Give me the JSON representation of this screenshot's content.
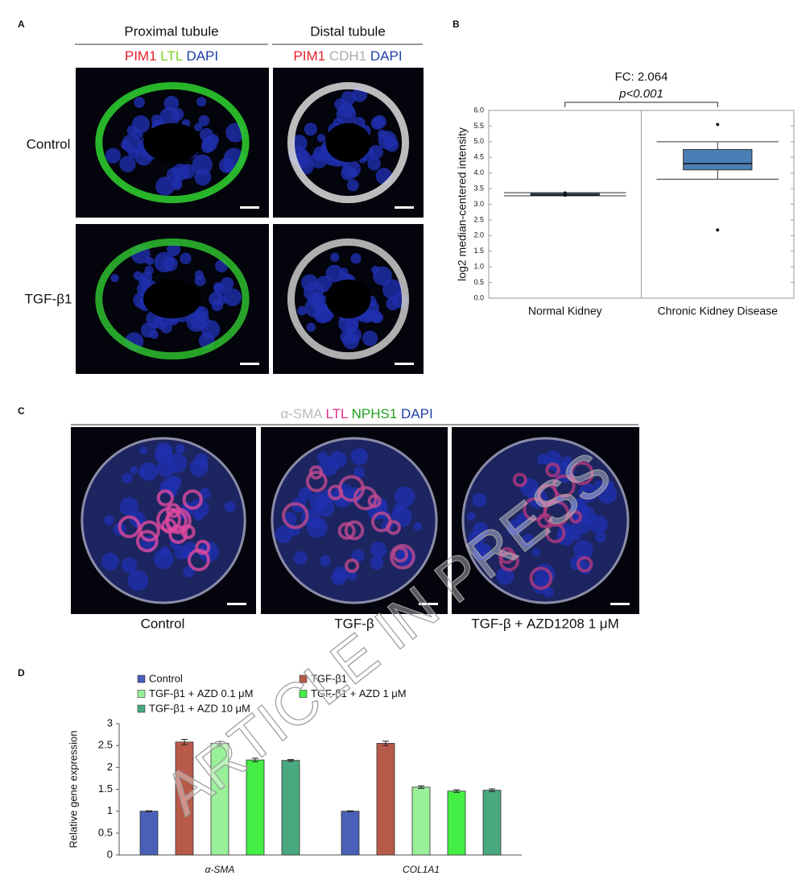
{
  "panel_a": {
    "label": "A",
    "headers": [
      "Proximal tubule",
      "Distal tubule"
    ],
    "stains": [
      [
        {
          "text": "PIM1",
          "color": "#e8202a"
        },
        {
          "text": "LTL",
          "color": "#7cd420"
        },
        {
          "text": "DAPI",
          "color": "#1f3fa8"
        }
      ],
      [
        {
          "text": "PIM1",
          "color": "#e8202a"
        },
        {
          "text": "CDH1",
          "color": "#aaaaaa"
        },
        {
          "text": "DAPI",
          "color": "#1f3fa8"
        }
      ]
    ],
    "rows": [
      "Control",
      "TGF-β1"
    ]
  },
  "panel_c": {
    "label": "C",
    "stains": [
      {
        "text": "α-SMA",
        "color": "#bbbbbb"
      },
      {
        "text": "LTL",
        "color": "#e0308a"
      },
      {
        "text": "NPHS1",
        "color": "#20a020"
      },
      {
        "text": "DAPI",
        "color": "#1f3fa8"
      }
    ],
    "captions": [
      "Control",
      "TGF-β",
      "TGF-β + AZD1208 1 μM"
    ]
  },
  "watermark": "ARTICLE IN PRESS",
  "chart_data": [
    {
      "type": "box",
      "label": "B",
      "annotations": [
        "FC: 2.064",
        "p<0.001"
      ],
      "y_label": "log2 median-centered intensity",
      "color": "#4a7fb5",
      "categories": [
        "Normal Kidney",
        "Chronic Kidney Disease"
      ],
      "boxes": [
        {
          "min": 3.27,
          "q1": 3.28,
          "median": 3.3,
          "q3": 3.35,
          "max": 3.37,
          "outliers": [
            3.29,
            3.36
          ]
        },
        {
          "min": 3.8,
          "q1": 4.1,
          "median": 4.3,
          "q3": 4.75,
          "max": 5.0,
          "outliers": [
            5.55,
            2.18
          ]
        }
      ],
      "ylim": [
        0,
        6
      ],
      "yticks": [
        {
          "value": 0,
          "label": "0.0"
        },
        {
          "value": 0.5,
          "label": "0.5"
        },
        {
          "value": 1,
          "label": "1.0"
        },
        {
          "value": 1.5,
          "label": "1.5"
        },
        {
          "value": 2,
          "label": "2.0"
        },
        {
          "value": 2.5,
          "label": "2.5"
        },
        {
          "value": 3,
          "label": "3.0"
        },
        {
          "value": 3.5,
          "label": "3.5"
        },
        {
          "value": 4,
          "label": "4.0"
        },
        {
          "value": 4.5,
          "label": "4.5"
        },
        {
          "value": 5,
          "label": "5.0"
        },
        {
          "value": 5.5,
          "label": "5.5"
        },
        {
          "value": 6,
          "label": "6.0"
        }
      ]
    },
    {
      "type": "bar",
      "label": "D",
      "y_label": "Relative gene expression",
      "categories": [
        "α-SMA",
        "COL1A1"
      ],
      "series": [
        {
          "name": "Control",
          "color": "#4a5fb8",
          "values": [
            1.0,
            1.0
          ],
          "errors": [
            0.01,
            0.01
          ]
        },
        {
          "name": "TGF-β1",
          "color": "#b85a4a",
          "values": [
            2.58,
            2.55
          ],
          "errors": [
            0.06,
            0.05
          ]
        },
        {
          "name": "TGF-β1 + AZD 0.1 μM",
          "color": "#99f099",
          "values": [
            2.55,
            1.55
          ],
          "errors": [
            0.04,
            0.03
          ]
        },
        {
          "name": "TGF-β1 + AZD 1 μM",
          "color": "#44ee44",
          "values": [
            2.17,
            1.46
          ],
          "errors": [
            0.04,
            0.03
          ]
        },
        {
          "name": "TGF-β1 + AZD 10 μM",
          "color": "#4aa880",
          "values": [
            2.16,
            1.48
          ],
          "errors": [
            0.02,
            0.03
          ]
        }
      ],
      "ylim": [
        0,
        3
      ],
      "yticks": [
        0,
        0.5,
        1,
        1.5,
        2,
        2.5,
        3
      ]
    }
  ]
}
